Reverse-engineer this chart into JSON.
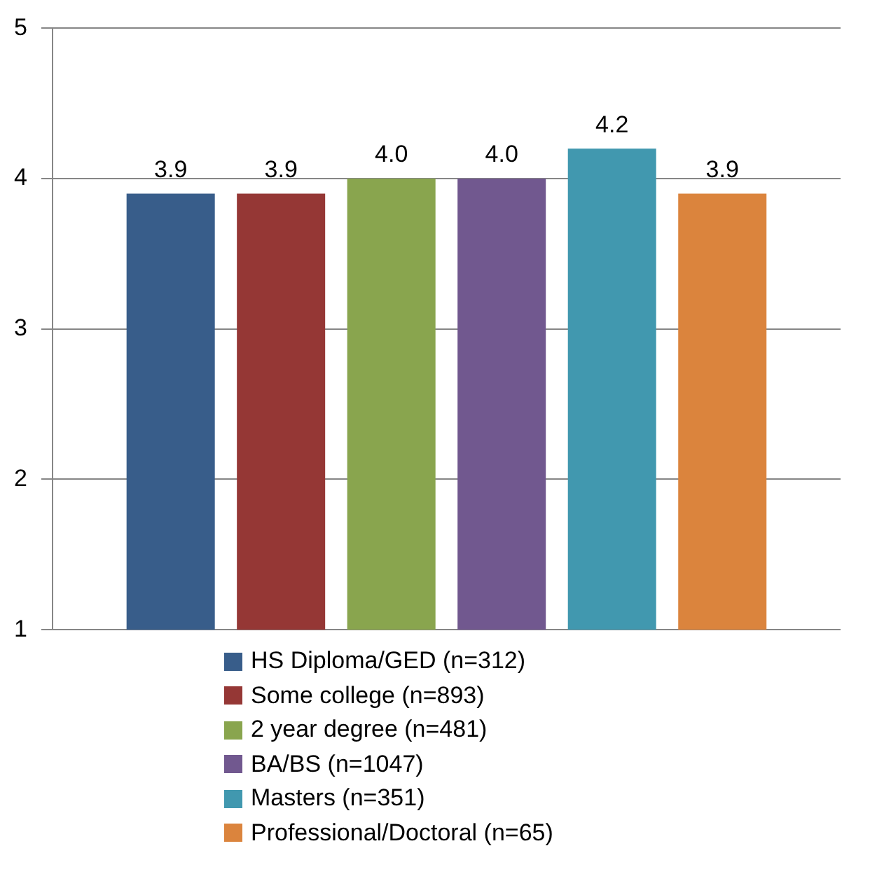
{
  "chart_data": {
    "type": "bar",
    "categories": [
      null
    ],
    "series": [
      {
        "name": "HS Diploma/GED (n=312)",
        "color": "#385d8a",
        "values": [
          3.9
        ],
        "value_labels": [
          "3.9"
        ]
      },
      {
        "name": "Some college (n=893)",
        "color": "#953735",
        "values": [
          3.9
        ],
        "value_labels": [
          "3.9"
        ]
      },
      {
        "name": "2 year degree (n=481)",
        "color": "#89a54e",
        "values": [
          4.0
        ],
        "value_labels": [
          "4.0"
        ]
      },
      {
        "name": "BA/BS (n=1047)",
        "color": "#71588f",
        "values": [
          4.0
        ],
        "value_labels": [
          "4.0"
        ]
      },
      {
        "name": "Masters (n=351)",
        "color": "#4198af",
        "values": [
          4.2
        ],
        "value_labels": [
          "4.2"
        ]
      },
      {
        "name": "Professional/Doctoral (n=65)",
        "color": "#db843d",
        "values": [
          3.9
        ],
        "value_labels": [
          "3.9"
        ]
      }
    ],
    "ylim": [
      1,
      5
    ],
    "yticks": [
      1,
      2,
      3,
      4,
      5
    ],
    "grid": "y",
    "legend": "bottom"
  }
}
